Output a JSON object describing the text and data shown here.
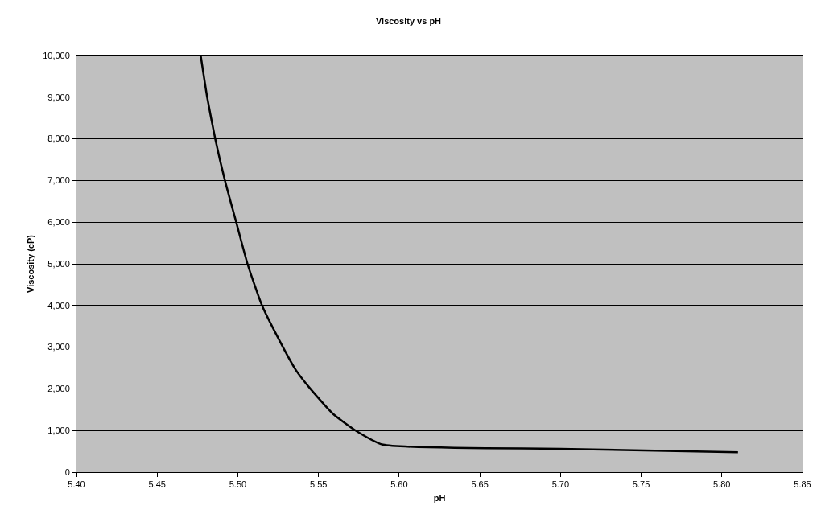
{
  "chart_data": {
    "type": "line",
    "title": "Viscosity vs pH",
    "xlabel": "pH",
    "ylabel": "Viscosity (cP)",
    "x": [
      5.477,
      5.481,
      5.486,
      5.492,
      5.499,
      5.506,
      5.515,
      5.528,
      5.536,
      5.545,
      5.559,
      5.573,
      5.59,
      5.7,
      5.81
    ],
    "series": [
      {
        "color": "#000000",
        "values": [
          10000,
          9000,
          8000,
          7000,
          6000,
          5000,
          4000,
          3000,
          2450,
          2000,
          1400,
          1000,
          660,
          560,
          480
        ]
      }
    ],
    "xlim": [
      5.4,
      5.85
    ],
    "xticks": [
      {
        "value": 5.4,
        "label": "5.40"
      },
      {
        "value": 5.45,
        "label": "5.45"
      },
      {
        "value": 5.5,
        "label": "5.50"
      },
      {
        "value": 5.55,
        "label": "5.55"
      },
      {
        "value": 5.6,
        "label": "5.60"
      },
      {
        "value": 5.65,
        "label": "5.65"
      },
      {
        "value": 5.7,
        "label": "5.70"
      },
      {
        "value": 5.75,
        "label": "5.75"
      },
      {
        "value": 5.8,
        "label": "5.80"
      },
      {
        "value": 5.85,
        "label": "5.85"
      }
    ],
    "ylim": [
      0,
      10000
    ],
    "yticks": [
      0,
      {
        "value": 1000,
        "label": "1,000"
      },
      {
        "value": 2000,
        "label": "2,000"
      },
      {
        "value": 3000,
        "label": "3,000"
      },
      {
        "value": 4000,
        "label": "4,000"
      },
      {
        "value": 5000,
        "label": "5,000"
      },
      {
        "value": 6000,
        "label": "6,000"
      },
      {
        "value": 7000,
        "label": "7,000"
      },
      {
        "value": 8000,
        "label": "8,000"
      },
      {
        "value": 9000,
        "label": "9,000"
      },
      {
        "value": 10000,
        "label": "10,000"
      }
    ],
    "grid": "y",
    "marker": "none",
    "line_style": "solid"
  }
}
